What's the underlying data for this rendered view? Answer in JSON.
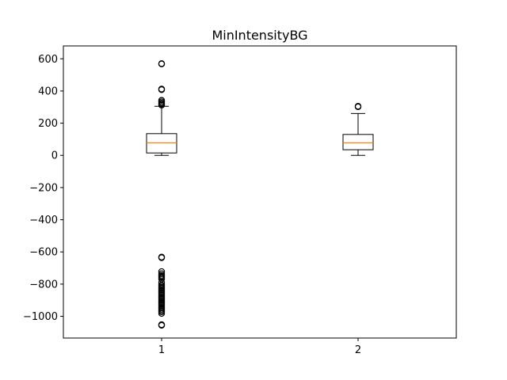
{
  "chart_data": {
    "type": "box",
    "title": "MinIntensityBG",
    "xlabel": "",
    "ylabel": "",
    "categories": [
      "1",
      "2"
    ],
    "ylim": [
      -1135,
      680
    ],
    "yticks": [
      600,
      400,
      200,
      0,
      -200,
      -400,
      -600,
      -800,
      -1000
    ],
    "ytick_labels": [
      "600",
      "400",
      "200",
      "0",
      "−200",
      "−400",
      "−600",
      "−800",
      "−1000"
    ],
    "grid": false,
    "boxes": [
      {
        "category": "1",
        "whisker_low": 0,
        "q1": 15,
        "median": 78,
        "q3": 135,
        "whisker_high": 305,
        "outliers": [
          570,
          568,
          412,
          408,
          342,
          333,
          325,
          318,
          312,
          -632,
          -636,
          -722,
          -735,
          -745,
          -752,
          -760,
          -768,
          -790,
          -805,
          -812,
          -820,
          -828,
          -836,
          -844,
          -852,
          -860,
          -868,
          -876,
          -884,
          -892,
          -900,
          -908,
          -916,
          -924,
          -932,
          -940,
          -948,
          -956,
          -964,
          -972,
          -982,
          -1052,
          -1056
        ]
      },
      {
        "category": "2",
        "whisker_low": 0,
        "q1": 35,
        "median": 78,
        "q3": 130,
        "whisker_high": 260,
        "outliers": [
          305,
          302
        ]
      }
    ],
    "colors": {
      "box": "#000000",
      "median": "#ff7f0e",
      "outlier": "#000000"
    }
  }
}
